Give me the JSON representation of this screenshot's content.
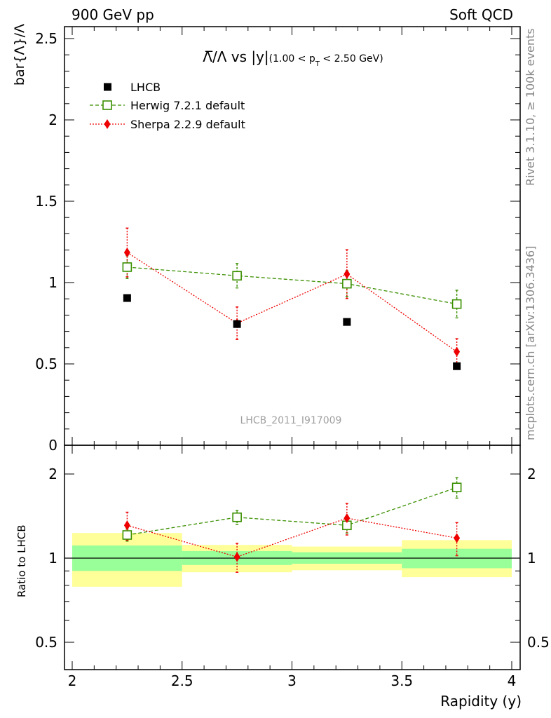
{
  "header": {
    "left": "900 GeV pp",
    "right": "Soft QCD"
  },
  "side_labels": {
    "rivet": "Rivet 3.1.10, ≥ 100k events",
    "mcplots": "mcplots.cern.ch [arXiv:1306.3436]"
  },
  "plot_title": {
    "main": "Λ̅/Λ vs |y|",
    "range_prefix": "(1.00 < p",
    "range_sub": "T",
    "range_suffix": " < 2.50 GeV)"
  },
  "watermark": "LHCB_2011_I917009",
  "colors": {
    "lhcb": "#000000",
    "herwig": "#3a8f00",
    "sherpa": "#ee0000",
    "band_inner": "#99ff99",
    "band_outer": "#ffff99"
  },
  "chart_data": [
    {
      "type": "scatter",
      "ylabel": "bar{Λ}/Λ",
      "xlim": [
        2,
        4
      ],
      "ylim": [
        0,
        2.6
      ],
      "yticks": [
        "0",
        "0.5",
        "1",
        "1.5",
        "2",
        "2.5"
      ],
      "legend_position": "top-left",
      "series": [
        {
          "name": "LHCB",
          "x": [
            2.25,
            2.75,
            3.25,
            3.75
          ],
          "y": [
            0.905,
            0.745,
            0.758,
            0.486
          ]
        },
        {
          "name": "Herwig 7.2.1 default",
          "x": [
            2.25,
            2.75,
            3.25,
            3.75
          ],
          "y": [
            1.095,
            1.042,
            0.993,
            0.868
          ],
          "err": [
            0.07,
            0.075,
            0.08,
            0.085
          ]
        },
        {
          "name": "Sherpa 2.2.9 default",
          "x": [
            2.25,
            2.75,
            3.25,
            3.75
          ],
          "y": [
            1.185,
            0.75,
            1.052,
            0.575
          ],
          "err": [
            0.15,
            0.1,
            0.15,
            0.08
          ]
        }
      ]
    },
    {
      "type": "scatter",
      "ylabel": "Ratio to LHCB",
      "xlabel": "Rapidity (y)",
      "xlim": [
        2,
        4
      ],
      "ylim": [
        0.4,
        2.3
      ],
      "log_y": true,
      "xticks": [
        "2",
        "2.5",
        "3",
        "3.5",
        "4"
      ],
      "yticks": [
        "0.5",
        "1",
        "2"
      ],
      "bands": [
        {
          "x0": 2.0,
          "x1": 2.5,
          "inner": [
            0.9,
            1.11
          ],
          "outer": [
            0.79,
            1.23
          ]
        },
        {
          "x0": 2.5,
          "x1": 3.0,
          "inner": [
            0.945,
            1.06
          ],
          "outer": [
            0.89,
            1.115
          ]
        },
        {
          "x0": 3.0,
          "x1": 3.5,
          "inner": [
            0.955,
            1.05
          ],
          "outer": [
            0.905,
            1.1
          ]
        },
        {
          "x0": 3.5,
          "x1": 4.0,
          "inner": [
            0.92,
            1.08
          ],
          "outer": [
            0.855,
            1.16
          ]
        }
      ],
      "series": [
        {
          "name": "Herwig 7.2.1 default",
          "x": [
            2.25,
            2.75,
            3.25,
            3.75
          ],
          "y": [
            1.21,
            1.4,
            1.31,
            1.79
          ],
          "err": [
            0.06,
            0.08,
            0.08,
            0.15
          ]
        },
        {
          "name": "Sherpa 2.2.9 default",
          "x": [
            2.25,
            2.75,
            3.25,
            3.75
          ],
          "y": [
            1.31,
            1.01,
            1.39,
            1.18
          ],
          "err": [
            0.15,
            0.12,
            0.18,
            0.16
          ]
        }
      ]
    }
  ]
}
